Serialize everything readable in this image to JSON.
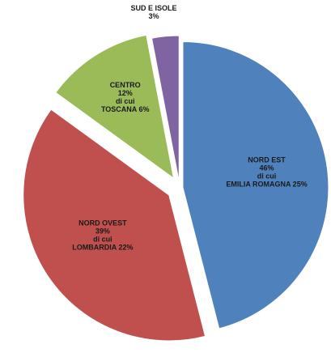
{
  "chart_data": {
    "type": "pie",
    "title": "",
    "slices": [
      {
        "name": "NORD EST",
        "value": 46,
        "value_label": "46%",
        "sub_prefix": "di cui",
        "sub_label": "EMILIA ROMAGNA 25%",
        "color": "#4f81bd"
      },
      {
        "name": "NORD OVEST",
        "value": 39,
        "value_label": "39%",
        "sub_prefix": "di cui",
        "sub_label": "LOMBARDIA 22%",
        "color": "#c0504d"
      },
      {
        "name": "CENTRO",
        "value": 12,
        "value_label": "12%",
        "sub_prefix": "di cui",
        "sub_label": "TOSCANA 6%",
        "color": "#9bbb59"
      },
      {
        "name": "SUD E ISOLE",
        "value": 3,
        "value_label": "3%",
        "sub_prefix": "",
        "sub_label": "",
        "color": "#8064a2"
      }
    ],
    "legend": "none",
    "labels_inside": true
  }
}
